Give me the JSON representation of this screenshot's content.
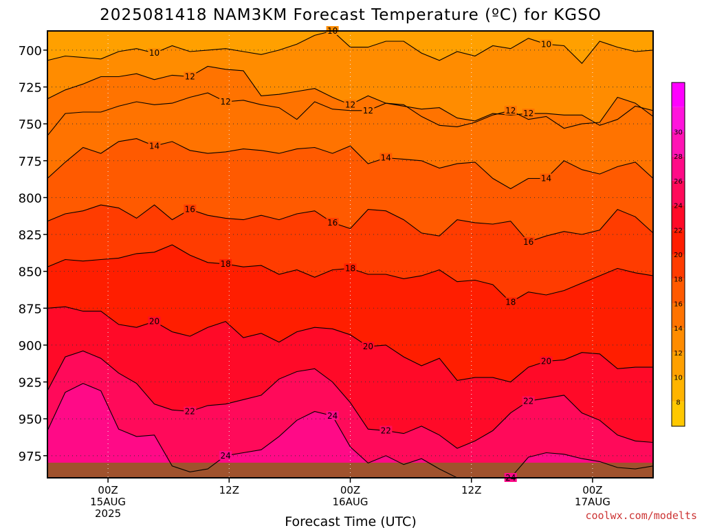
{
  "chart_data": {
    "type": "heatmap",
    "title": "2025081418 NAM3KM Forecast Temperature (ºC) for KGSO",
    "xlabel": "Forecast Time (UTC)",
    "credit": "coolwx.com/modelts",
    "y_axis": {
      "label": "",
      "ticks": [
        700,
        725,
        750,
        775,
        800,
        825,
        850,
        875,
        900,
        925,
        950,
        975
      ],
      "range": [
        687,
        990
      ],
      "inverted": true
    },
    "x_axis": {
      "ticks": [
        {
          "lines": [
            "00Z",
            "15AUG",
            "2025"
          ],
          "hour": 0
        },
        {
          "lines": [
            "12Z"
          ],
          "hour": 12
        },
        {
          "lines": [
            "00Z",
            "16AUG"
          ],
          "hour": 24
        },
        {
          "lines": [
            "12Z"
          ],
          "hour": 36
        },
        {
          "lines": [
            "00Z",
            "17AUG"
          ],
          "hour": 48
        }
      ],
      "range_hours_from_15AUG_00Z": [
        -6,
        54
      ]
    },
    "colorbar": {
      "levels": [
        8,
        10,
        12,
        14,
        16,
        18,
        20,
        22,
        24,
        26,
        28,
        30
      ],
      "colors": [
        "#ffc800",
        "#ffb400",
        "#ffa000",
        "#ff8c00",
        "#ff7300",
        "#ff5a00",
        "#ff3c00",
        "#ff1e00",
        "#ff0a28",
        "#ff0a5a",
        "#ff0a87",
        "#ff14b4",
        "#ff14dc",
        "#ff00ff"
      ]
    },
    "contours": [
      {
        "value": 10,
        "pressure": [
          707,
          704,
          705,
          706,
          701,
          699,
          702,
          697,
          701,
          700,
          699,
          701,
          703,
          700,
          696,
          690,
          687,
          698,
          698,
          694,
          694,
          702,
          707,
          701,
          704,
          697,
          699,
          692,
          696,
          697,
          709,
          694,
          698,
          701,
          700
        ]
      },
      {
        "value": 12,
        "pressure": [
          733,
          727,
          723,
          718,
          718,
          716,
          720,
          717,
          718,
          711,
          713,
          714,
          731,
          730,
          728,
          726,
          732,
          737,
          731,
          736,
          738,
          740,
          739,
          746,
          748,
          743,
          744,
          743,
          743,
          744,
          744,
          751,
          747,
          738,
          741
        ]
      },
      {
        "value": 12,
        "pressure": [
          758,
          743,
          742,
          742,
          738,
          735,
          737,
          736,
          732,
          729,
          735,
          734,
          737,
          739,
          747,
          735,
          740,
          741,
          741,
          736,
          737,
          745,
          751,
          752,
          749,
          744,
          741,
          747,
          745,
          753,
          750,
          749,
          732,
          736,
          745
        ]
      },
      {
        "value": 14,
        "pressure": [
          787,
          776,
          766,
          770,
          762,
          760,
          765,
          762,
          768,
          770,
          769,
          767,
          768,
          770,
          767,
          766,
          770,
          765,
          777,
          773,
          774,
          775,
          780,
          777,
          776,
          787,
          794,
          787,
          787,
          775,
          781,
          784,
          779,
          776,
          787
        ]
      },
      {
        "value": 16,
        "pressure": [
          816,
          811,
          809,
          805,
          807,
          814,
          805,
          815,
          808,
          812,
          814,
          815,
          812,
          815,
          811,
          809,
          817,
          821,
          808,
          809,
          815,
          824,
          826,
          815,
          817,
          818,
          816,
          830,
          826,
          823,
          825,
          822,
          808,
          813,
          824
        ]
      },
      {
        "value": 18,
        "pressure": [
          847,
          842,
          843,
          842,
          841,
          838,
          837,
          832,
          839,
          844,
          845,
          847,
          846,
          852,
          849,
          854,
          849,
          848,
          852,
          852,
          855,
          853,
          849,
          857,
          856,
          859,
          871,
          864,
          866,
          863,
          858,
          853,
          848,
          851,
          853
        ]
      },
      {
        "value": 20,
        "pressure": [
          875,
          874,
          877,
          877,
          886,
          888,
          884,
          891,
          894,
          888,
          884,
          895,
          892,
          898,
          891,
          888,
          889,
          893,
          901,
          900,
          908,
          914,
          909,
          924,
          922,
          922,
          925,
          915,
          911,
          910,
          905,
          906,
          916,
          915,
          915
        ]
      },
      {
        "value": 22,
        "pressure": [
          931,
          908,
          904,
          909,
          919,
          926,
          940,
          944,
          945,
          941,
          940,
          937,
          934,
          923,
          918,
          916,
          925,
          939,
          957,
          958,
          960,
          955,
          961,
          970,
          965,
          958,
          946,
          938,
          936,
          934,
          946,
          951,
          961,
          965,
          966
        ]
      },
      {
        "value": 24,
        "pressure": [
          958,
          932,
          926,
          931,
          957,
          962,
          961,
          982,
          986,
          984,
          975,
          973,
          971,
          962,
          951,
          945,
          948,
          969,
          980,
          975,
          981,
          977,
          984,
          990,
          990,
          990,
          990,
          976,
          973,
          974,
          977,
          979,
          983,
          984,
          982
        ]
      }
    ]
  }
}
